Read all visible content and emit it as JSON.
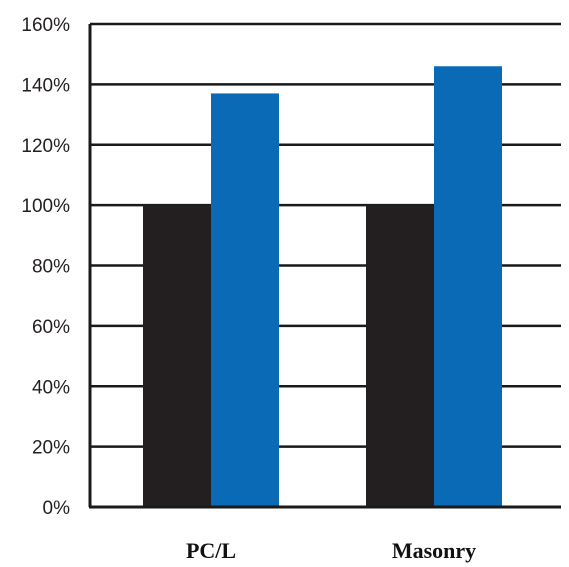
{
  "chart_data": {
    "type": "bar",
    "categories": [
      "PC/L",
      "Masonry"
    ],
    "series": [
      {
        "values": [
          100,
          100
        ],
        "color": "#231f20"
      },
      {
        "values": [
          137,
          146
        ],
        "color": "#0a6ab5"
      }
    ],
    "y_ticks": [
      "0%",
      "20%",
      "40%",
      "60%",
      "80%",
      "100%",
      "120%",
      "140%",
      "160%"
    ],
    "ylim": [
      0,
      160
    ],
    "y_tick_step": 20,
    "grid": true,
    "legend": "none",
    "title": "",
    "xlabel": "",
    "ylabel": ""
  }
}
